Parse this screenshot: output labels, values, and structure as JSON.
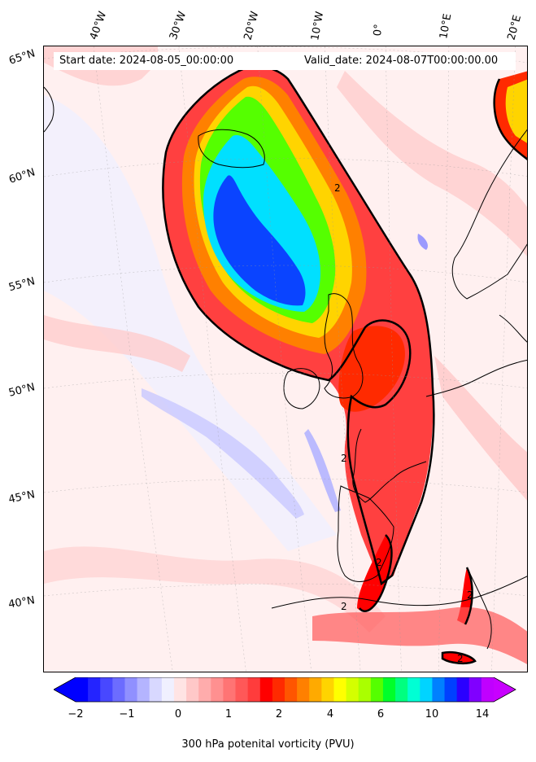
{
  "header": {
    "start_date": "Start date: 2024-08-05_00:00:00",
    "valid_date": "Valid_date: 2024-08-07T00:00:00.00"
  },
  "longitude_labels": [
    "40°W",
    "30°W",
    "20°W",
    "10°W",
    "0°",
    "10°E",
    "20°E"
  ],
  "latitude_labels": [
    "65°N",
    "60°N",
    "55°N",
    "50°N",
    "45°N",
    "40°N"
  ],
  "contour_label": "2",
  "colorbar": {
    "title": "300 hPa potenital vorticity (PVU)",
    "ticks": [
      "−2",
      "−1",
      "0",
      "1",
      "2",
      "4",
      "6",
      "10",
      "14"
    ],
    "colors": [
      "#0000ff",
      "#2424ff",
      "#4848ff",
      "#6c6cff",
      "#9090ff",
      "#b4b4ff",
      "#d8d8ff",
      "#f0f0ff",
      "#ffe4e4",
      "#ffc8c8",
      "#ffacac",
      "#ff9090",
      "#ff7474",
      "#ff5858",
      "#ff3c3c",
      "#ff0000",
      "#ff2a00",
      "#ff5500",
      "#ff8000",
      "#ffaa00",
      "#ffd400",
      "#ffff00",
      "#d4ff00",
      "#aaff00",
      "#55ff00",
      "#00ff2a",
      "#00ff80",
      "#00ffd4",
      "#00d4ff",
      "#0080ff",
      "#0040ff",
      "#2a00ff",
      "#8000ff",
      "#c000ff"
    ],
    "under_color": "#0000ff",
    "over_color": "#c800ff"
  }
}
